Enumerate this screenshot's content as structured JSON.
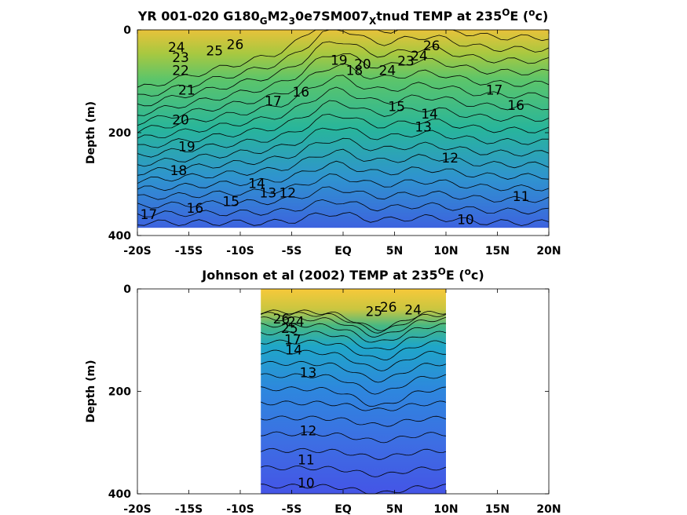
{
  "chart_data": [
    {
      "type": "contour",
      "title_parts": [
        "YR 001-020 G180",
        "G",
        "M2",
        "3",
        "0e7SM007",
        "X",
        "tnud TEMP at 235",
        "O",
        "E (",
        "o",
        "c)"
      ],
      "ylabel": "Depth (m)",
      "xticks": [
        "-20S",
        "-15S",
        "-10S",
        "-5S",
        "EQ",
        "5N",
        "10N",
        "15N",
        "20N"
      ],
      "xtick_values": [
        -20,
        -15,
        -10,
        -5,
        0,
        5,
        10,
        15,
        20
      ],
      "yticks": [
        "0",
        "200",
        "400"
      ],
      "ytick_values": [
        0,
        200,
        400
      ],
      "xlim": [
        -20,
        20
      ],
      "ylim": [
        0,
        400
      ],
      "data_xlim": [
        -20,
        20
      ],
      "data_ylim": [
        0,
        385
      ],
      "contour_labels": [
        {
          "t": "26",
          "x": -10.5,
          "y": 30
        },
        {
          "t": "25",
          "x": -12.5,
          "y": 42
        },
        {
          "t": "24",
          "x": -16.2,
          "y": 35
        },
        {
          "t": "23",
          "x": -15.8,
          "y": 55
        },
        {
          "t": "22",
          "x": -15.8,
          "y": 80
        },
        {
          "t": "21",
          "x": -15.2,
          "y": 118
        },
        {
          "t": "20",
          "x": -15.8,
          "y": 176
        },
        {
          "t": "19",
          "x": -15.2,
          "y": 228
        },
        {
          "t": "18",
          "x": -16.0,
          "y": 275
        },
        {
          "t": "17",
          "x": -18.9,
          "y": 360
        },
        {
          "t": "16",
          "x": -14.4,
          "y": 348
        },
        {
          "t": "15",
          "x": -10.9,
          "y": 335
        },
        {
          "t": "14",
          "x": -8.4,
          "y": 300
        },
        {
          "t": "13",
          "x": -7.3,
          "y": 318
        },
        {
          "t": "12",
          "x": -5.4,
          "y": 318
        },
        {
          "t": "17",
          "x": -6.8,
          "y": 140
        },
        {
          "t": "16",
          "x": -4.1,
          "y": 122
        },
        {
          "t": "19",
          "x": -0.4,
          "y": 60
        },
        {
          "t": "20",
          "x": 1.9,
          "y": 68
        },
        {
          "t": "18",
          "x": 1.1,
          "y": 80
        },
        {
          "t": "24",
          "x": 4.3,
          "y": 80
        },
        {
          "t": "23",
          "x": 6.1,
          "y": 62
        },
        {
          "t": "24",
          "x": 7.4,
          "y": 52
        },
        {
          "t": "26",
          "x": 8.6,
          "y": 32
        },
        {
          "t": "15",
          "x": 5.2,
          "y": 150
        },
        {
          "t": "14",
          "x": 8.4,
          "y": 165
        },
        {
          "t": "13",
          "x": 7.8,
          "y": 190
        },
        {
          "t": "12",
          "x": 10.4,
          "y": 250
        },
        {
          "t": "17",
          "x": 14.7,
          "y": 118
        },
        {
          "t": "16",
          "x": 16.8,
          "y": 148
        },
        {
          "t": "11",
          "x": 17.3,
          "y": 325
        },
        {
          "t": "10",
          "x": 11.9,
          "y": 370
        }
      ]
    },
    {
      "type": "contour",
      "title_parts": [
        "Johnson et al (2002) TEMP at 235",
        "O",
        "E (",
        "o",
        "c)"
      ],
      "ylabel": "Depth (m)",
      "xticks": [
        "-20S",
        "-15S",
        "-10S",
        "-5S",
        "EQ",
        "5N",
        "10N",
        "15N",
        "20N"
      ],
      "xtick_values": [
        -20,
        -15,
        -10,
        -5,
        0,
        5,
        10,
        15,
        20
      ],
      "yticks": [
        "0",
        "200",
        "400"
      ],
      "ytick_values": [
        0,
        200,
        400
      ],
      "xlim": [
        -20,
        20
      ],
      "ylim": [
        0,
        400
      ],
      "data_xlim": [
        -8,
        10
      ],
      "data_ylim": [
        0,
        400
      ],
      "contour_labels": [
        {
          "t": "26",
          "x": -6.0,
          "y": 60
        },
        {
          "t": "25",
          "x": -5.2,
          "y": 78
        },
        {
          "t": "24",
          "x": -4.6,
          "y": 65
        },
        {
          "t": "17",
          "x": -4.9,
          "y": 100
        },
        {
          "t": "14",
          "x": -4.8,
          "y": 120
        },
        {
          "t": "13",
          "x": -3.4,
          "y": 165
        },
        {
          "t": "26",
          "x": 4.4,
          "y": 37
        },
        {
          "t": "25",
          "x": 3.0,
          "y": 45
        },
        {
          "t": "24",
          "x": 6.8,
          "y": 42
        },
        {
          "t": "12",
          "x": -3.4,
          "y": 278
        },
        {
          "t": "11",
          "x": -3.6,
          "y": 335
        },
        {
          "t": "10",
          "x": -3.6,
          "y": 380
        }
      ]
    }
  ]
}
